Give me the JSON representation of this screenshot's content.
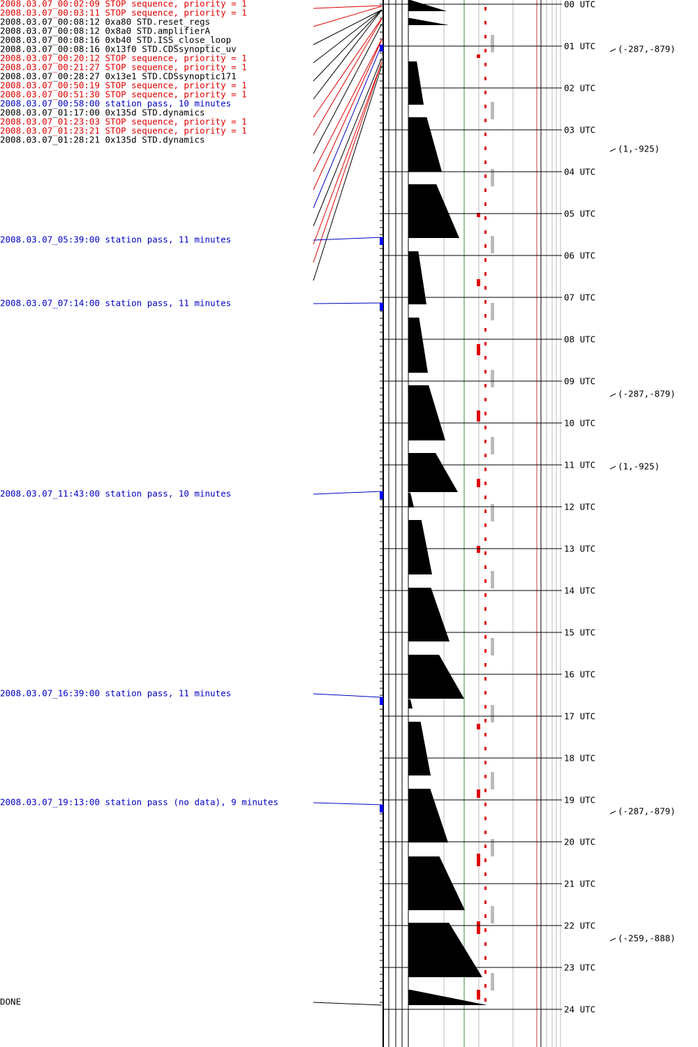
{
  "events": [
    {
      "text": "2008.03.07_00:02:09 STOP sequence, priority = 1",
      "color": "#e00000"
    },
    {
      "text": "2008.03.07_00:03:11 STOP sequence, priority = 1",
      "color": "#e00000"
    },
    {
      "text": "2008.03.07_00:08:12  0xa80 STD.reset_regs",
      "color": "#000000"
    },
    {
      "text": "2008.03.07_00:08:12  0x8a0 STD.amplifierA",
      "color": "#000000"
    },
    {
      "text": "2008.03.07_00:08:16  0xb40 STD.ISS_close_loop",
      "color": "#000000"
    },
    {
      "text": "2008.03.07_00:08:16 0x13f0 STD.CDSsynoptic_uv",
      "color": "#000000"
    },
    {
      "text": "2008.03.07_00:20:12 STOP sequence, priority = 1",
      "color": "#e00000"
    },
    {
      "text": "2008.03.07_00:21:27 STOP sequence, priority = 1",
      "color": "#e00000"
    },
    {
      "text": "2008.03.07_00:28:27 0x13e1 STD.CDSsynoptic171",
      "color": "#000000"
    },
    {
      "text": "2008.03.07_00:50:19 STOP sequence, priority = 1",
      "color": "#e00000"
    },
    {
      "text": "2008.03.07_00:51:30 STOP sequence, priority = 1",
      "color": "#e00000"
    },
    {
      "text": "2008.03.07_00:58:00 station pass, 10 minutes",
      "color": "#0000c0"
    },
    {
      "text": "2008.03.07_01:17:00 0x135d STD.dynamics",
      "color": "#000000"
    },
    {
      "text": "2008.03.07_01:23:03 STOP sequence, priority = 1",
      "color": "#e00000"
    },
    {
      "text": "2008.03.07_01:23:21 STOP sequence, priority = 1",
      "color": "#e00000"
    },
    {
      "text": "2008.03.07_01:28:21 0x135d STD.dynamics",
      "color": "#000000"
    },
    {
      "text": "2008.03.07_05:39:00 station pass, 11 minutes",
      "color": "#0000c0"
    },
    {
      "text": "2008.03.07_07:14:00 station pass, 11 minutes",
      "color": "#0000c0"
    },
    {
      "text": "2008.03.07_11:43:00 station pass, 10 minutes",
      "color": "#0000c0"
    },
    {
      "text": "2008.03.07_16:39:00 station pass, 11 minutes",
      "color": "#0000c0"
    },
    {
      "text": "2008.03.07_19:13:00 station pass (no data), 9 minutes",
      "color": "#0000c0"
    },
    {
      "text": "DONE",
      "color": "#000000"
    }
  ],
  "hours": [
    "00 UTC",
    "01 UTC",
    "02 UTC",
    "03 UTC",
    "04 UTC",
    "05 UTC",
    "06 UTC",
    "07 UTC",
    "08 UTC",
    "09 UTC",
    "10 UTC",
    "11 UTC",
    "12 UTC",
    "13 UTC",
    "14 UTC",
    "15 UTC",
    "16 UTC",
    "17 UTC",
    "18 UTC",
    "19 UTC",
    "20 UTC",
    "21 UTC",
    "22 UTC",
    "23 UTC",
    "24 UTC"
  ],
  "coords": [
    "(-287,-879)",
    "(1,-925)",
    "(-287,-879)",
    "(1,-925)",
    "(-287,-879)",
    "(-259,-888)"
  ]
}
